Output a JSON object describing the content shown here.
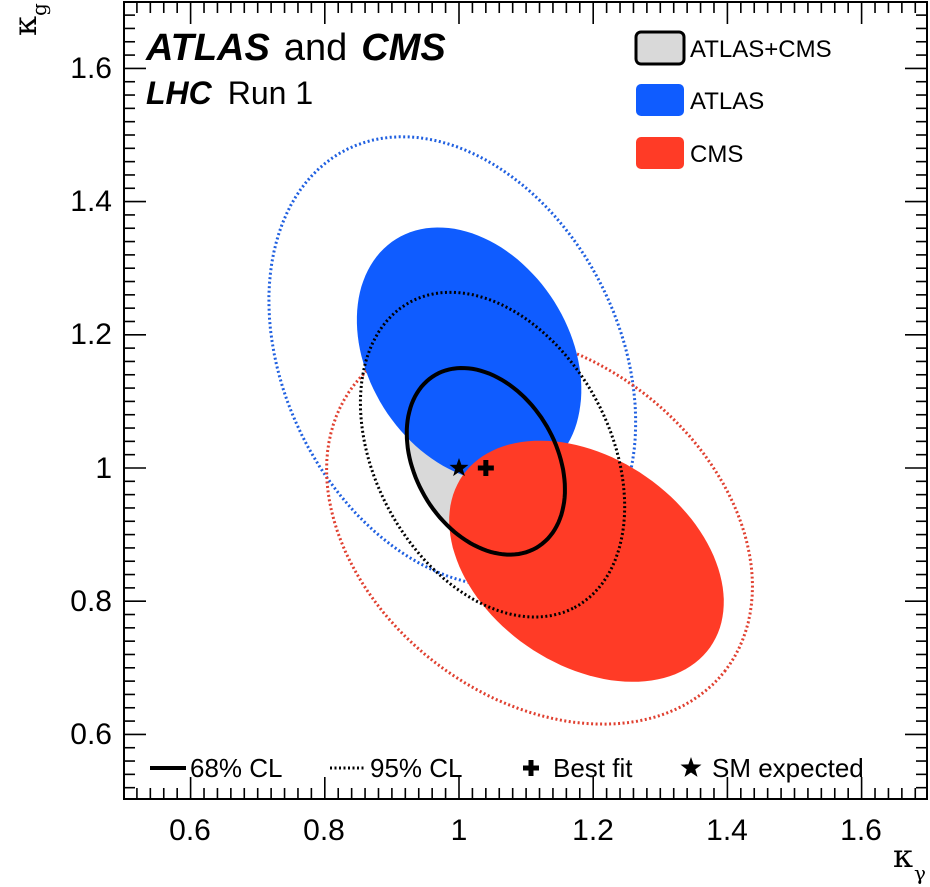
{
  "experiment": {
    "name1": "ATLAS",
    "and": "and",
    "name2": "CMS",
    "collider": "LHC",
    "run": "Run 1"
  },
  "axes": {
    "xlabel_main": "κ",
    "xlabel_sub": "γ",
    "ylabel_main": "κ",
    "ylabel_sub": "g"
  },
  "legend": {
    "combined": "ATLAS+CMS",
    "atlas": "ATLAS",
    "cms": "CMS",
    "cl68": "68% CL",
    "cl95": "95% CL",
    "best_fit": "Best fit",
    "sm_expected": "SM expected"
  },
  "colors": {
    "combined": "#d9d9d9",
    "atlas": "#0f5cff",
    "cms": "#ff3b26",
    "atlas_line": "#2060e0",
    "cms_line": "#e04030",
    "combined_line": "#000000"
  },
  "chart_data": {
    "type": "scatter",
    "xlabel": "κγ",
    "ylabel": "κg",
    "xlim": [
      0.5,
      1.7
    ],
    "ylim": [
      0.5,
      1.7
    ],
    "xticks": [
      "0.6",
      "0.8",
      "1",
      "1.2",
      "1.4",
      "1.6"
    ],
    "yticks": [
      "0.6",
      "0.8",
      "1",
      "1.2",
      "1.4",
      "1.6"
    ],
    "grid": false,
    "legend_position": "top-right",
    "best_fit": {
      "kappa_gamma": 1.04,
      "kappa_g": 1.0
    },
    "sm_expected": {
      "kappa_gamma": 1.0,
      "kappa_g": 1.0
    },
    "contours": [
      {
        "name": "ATLAS+CMS",
        "cl": "68% CL",
        "center": [
          1.04,
          1.01
        ],
        "semi_axes": [
          0.15,
          0.105
        ],
        "rotation_deg": -60,
        "style": "solid"
      },
      {
        "name": "ATLAS+CMS",
        "cl": "95% CL",
        "center": [
          1.05,
          1.02
        ],
        "semi_axes": [
          0.26,
          0.175
        ],
        "rotation_deg": -62,
        "style": "dotted"
      },
      {
        "name": "ATLAS",
        "cl": "68% CL",
        "center": [
          1.015,
          1.17
        ],
        "semi_axes": [
          0.205,
          0.15
        ],
        "rotation_deg": -58,
        "style": "filled"
      },
      {
        "name": "ATLAS",
        "cl": "95% CL",
        "center": [
          0.99,
          1.16
        ],
        "semi_axes": [
          0.355,
          0.25
        ],
        "rotation_deg": -64,
        "style": "dotted"
      },
      {
        "name": "CMS",
        "cl": "68% CL",
        "center": [
          1.19,
          0.86
        ],
        "semi_axes": [
          0.225,
          0.155
        ],
        "rotation_deg": -35,
        "style": "filled"
      },
      {
        "name": "CMS",
        "cl": "95% CL",
        "center": [
          1.12,
          0.91
        ],
        "semi_axes": [
          0.35,
          0.255
        ],
        "rotation_deg": -38,
        "style": "dotted"
      }
    ]
  }
}
